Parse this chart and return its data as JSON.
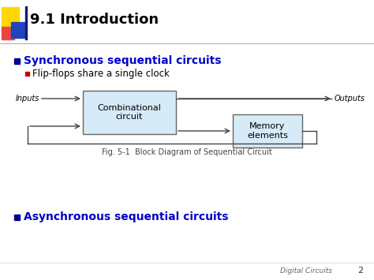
{
  "title": "9.1 Introduction",
  "title_fontsize": 13,
  "title_color": "#000000",
  "bg_color": "#ffffff",
  "bullet1_text": "Synchronous sequential circuits",
  "bullet1_color": "#0000CC",
  "bullet1_fontsize": 10,
  "bullet1_marker_color": "#00008B",
  "sub_bullet_text": "Flip-flops share a single clock",
  "sub_bullet_color": "#000000",
  "sub_bullet_fontsize": 8.5,
  "sub_bullet_marker_color": "#CC0000",
  "bullet2_text": "Asynchronous sequential circuits",
  "bullet2_color": "#0000CC",
  "bullet2_fontsize": 10,
  "bullet2_marker_color": "#00008B",
  "diagram_box1_label": "Combinational\ncircuit",
  "diagram_box2_label": "Memory\nelements",
  "diagram_box_fill": "#D6EAF8",
  "diagram_box_edge": "#666666",
  "diagram_inputs_label": "Inputs",
  "diagram_outputs_label": "Outputs",
  "diagram_caption": "Fig. 5-1  Block Diagram of Sequential Circuit",
  "footer_text": "Digital Circuits",
  "footer_number": "2",
  "line_color": "#444444"
}
